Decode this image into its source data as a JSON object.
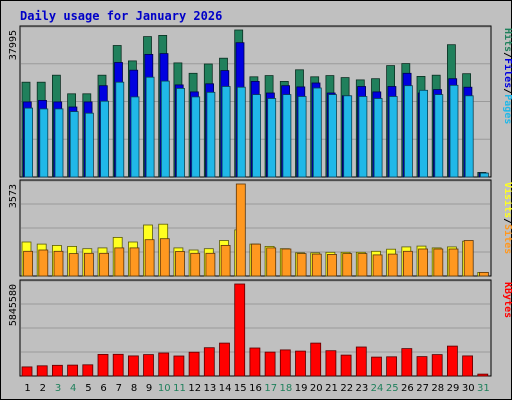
{
  "title": "Daily usage for January 2026",
  "colors": {
    "hits": "#20805c",
    "files": "#0000e0",
    "pages": "#20b8e8",
    "visits": "#ffff20",
    "sites": "#ff9820",
    "kbytes": "#ff0000",
    "weekend_day": "#20805c",
    "weekday": "#000000"
  },
  "chart_data": [
    {
      "type": "bar",
      "title": "Daily usage for January 2026",
      "categories": [
        "1",
        "2",
        "3",
        "4",
        "5",
        "6",
        "7",
        "8",
        "9",
        "10",
        "11",
        "12",
        "13",
        "14",
        "15",
        "16",
        "17",
        "18",
        "19",
        "20",
        "21",
        "22",
        "23",
        "24",
        "25",
        "26",
        "27",
        "28",
        "29",
        "30",
        "31"
      ],
      "weekend_days": [
        "3",
        "4",
        "10",
        "11",
        "17",
        "18",
        "24",
        "25",
        "31"
      ],
      "ymax_label": "37995",
      "ylim": [
        0,
        37995
      ],
      "axis_label_parts": [
        "Pages",
        "Files",
        "Hits"
      ],
      "series": [
        {
          "name": "Hits",
          "values": [
            24500,
            24500,
            26300,
            21500,
            21500,
            26300,
            34000,
            30000,
            36300,
            36600,
            29500,
            26800,
            29200,
            30700,
            38000,
            25900,
            26200,
            24700,
            27700,
            25900,
            26200,
            25700,
            25100,
            25400,
            28800,
            29300,
            26000,
            26300,
            34200,
            26700,
            1200
          ]
        },
        {
          "name": "Files",
          "values": [
            19400,
            19800,
            19400,
            18100,
            19400,
            23600,
            29600,
            27600,
            31700,
            31900,
            23800,
            22000,
            24100,
            27500,
            34700,
            24700,
            21700,
            23600,
            23300,
            24300,
            21700,
            21000,
            23400,
            22000,
            23400,
            26800,
            21700,
            22600,
            25400,
            23200,
            1000
          ]
        },
        {
          "name": "Pages",
          "values": [
            17800,
            17600,
            17600,
            16900,
            16500,
            19600,
            24500,
            20700,
            25800,
            24800,
            22900,
            20700,
            21900,
            23400,
            23200,
            21300,
            20300,
            21300,
            20800,
            23000,
            21300,
            21000,
            20800,
            20300,
            20800,
            23600,
            22400,
            21300,
            23700,
            21000,
            1000
          ]
        }
      ]
    },
    {
      "type": "bar",
      "categories": [
        "1",
        "2",
        "3",
        "4",
        "5",
        "6",
        "7",
        "8",
        "9",
        "10",
        "11",
        "12",
        "13",
        "14",
        "15",
        "16",
        "17",
        "18",
        "19",
        "20",
        "21",
        "22",
        "23",
        "24",
        "25",
        "26",
        "27",
        "28",
        "29",
        "30",
        "31"
      ],
      "ymax_label": "3573",
      "ylim": [
        0,
        3573
      ],
      "axis_label_parts": [
        "Sites",
        "Visits"
      ],
      "series": [
        {
          "name": "Visits",
          "values": [
            1320,
            1240,
            1190,
            1150,
            1060,
            1090,
            1500,
            1320,
            1980,
            2010,
            1090,
            1010,
            1060,
            1380,
            1790,
            1240,
            1150,
            1060,
            900,
            900,
            920,
            920,
            920,
            960,
            1040,
            1130,
            1160,
            1090,
            1130,
            1350,
            140
          ]
        },
        {
          "name": "Sites",
          "values": [
            960,
            1010,
            960,
            870,
            880,
            880,
            1090,
            1090,
            1410,
            1450,
            950,
            880,
            880,
            1190,
            3573,
            1240,
            1090,
            1050,
            870,
            850,
            840,
            870,
            870,
            820,
            850,
            960,
            1050,
            1050,
            1050,
            1380,
            140
          ]
        }
      ]
    },
    {
      "type": "bar",
      "categories": [
        "1",
        "2",
        "3",
        "4",
        "5",
        "6",
        "7",
        "8",
        "9",
        "10",
        "11",
        "12",
        "13",
        "14",
        "15",
        "16",
        "17",
        "18",
        "19",
        "20",
        "21",
        "22",
        "23",
        "24",
        "25",
        "26",
        "27",
        "28",
        "29",
        "30",
        "31"
      ],
      "ymax_label": "5845580",
      "ylim": [
        0,
        5845580
      ],
      "axis_label_parts": [
        "KBytes"
      ],
      "series": [
        {
          "name": "KBytes",
          "values": [
            580000,
            650000,
            680000,
            690000,
            710000,
            1370000,
            1380000,
            1280000,
            1360000,
            1460000,
            1270000,
            1510000,
            1800000,
            2090000,
            5845580,
            1780000,
            1520000,
            1660000,
            1580000,
            2090000,
            1610000,
            1330000,
            1840000,
            1200000,
            1220000,
            1740000,
            1230000,
            1360000,
            1900000,
            1280000,
            120000
          ]
        }
      ]
    }
  ]
}
